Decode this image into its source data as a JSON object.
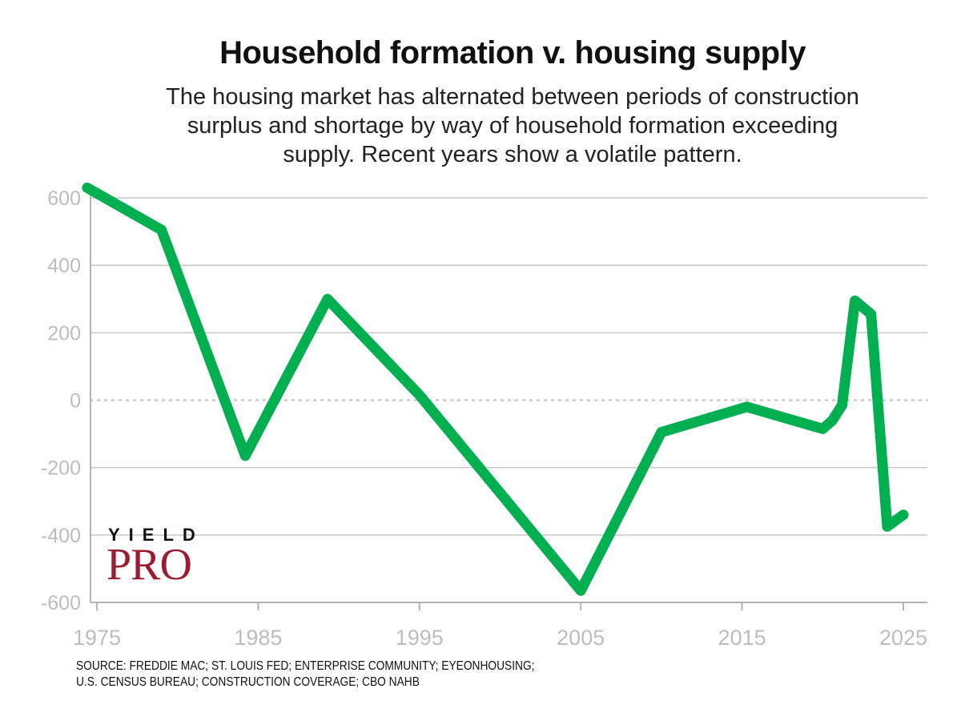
{
  "title": "Household formation v. housing supply",
  "subtitle_lines": [
    "The housing market has alternated between periods of construction",
    "surplus and shortage by way of household formation exceeding",
    "supply. Recent years show a volatile pattern."
  ],
  "source_lines": [
    "SOURCE: FREDDIE MAC; ST. LOUIS FED; ENTERPRISE COMMUNITY; EYEONHOUSING;",
    "U.S. CENSUS BUREAU; CONSTRUCTION COVERAGE; CBO NAHB"
  ],
  "logo": {
    "top_text": "YIELD",
    "main_text": "PRO"
  },
  "colors": {
    "line": "#00b050",
    "grid": "#c8c8c8",
    "axis": "#b3b3b3",
    "tick_text": "#bdbdbd",
    "logo_red": "#9b1b30"
  },
  "chart_data": {
    "type": "line",
    "title": "Household formation v. housing supply",
    "xlabel": "",
    "ylabel": "",
    "xlim": [
      1974,
      2026.5
    ],
    "ylim": [
      -600,
      620
    ],
    "x_ticks": [
      1975,
      1985,
      1995,
      2005,
      2015,
      2025
    ],
    "x_tick_labels": [
      "1975",
      "1985",
      "1995",
      "2005",
      "2015",
      "2025"
    ],
    "y_ticks": [
      -600,
      -400,
      -200,
      0,
      200,
      400,
      600
    ],
    "y_tick_labels": [
      "-600",
      "-400",
      "-200",
      "0",
      "200",
      "400",
      "600"
    ],
    "zero_line": "dotted",
    "grid": "horizontal",
    "series": [
      {
        "x": [
          1974.4,
          1979,
          1984.2,
          1989.3,
          1995,
          2005,
          2010,
          2015.3,
          2020,
          2020.6,
          2021.2,
          2022,
          2023,
          2024,
          2025
        ],
        "y": [
          630,
          505,
          -165,
          300,
          15,
          -565,
          -95,
          -20,
          -85,
          -60,
          -15,
          295,
          255,
          -375,
          -340
        ]
      }
    ]
  }
}
